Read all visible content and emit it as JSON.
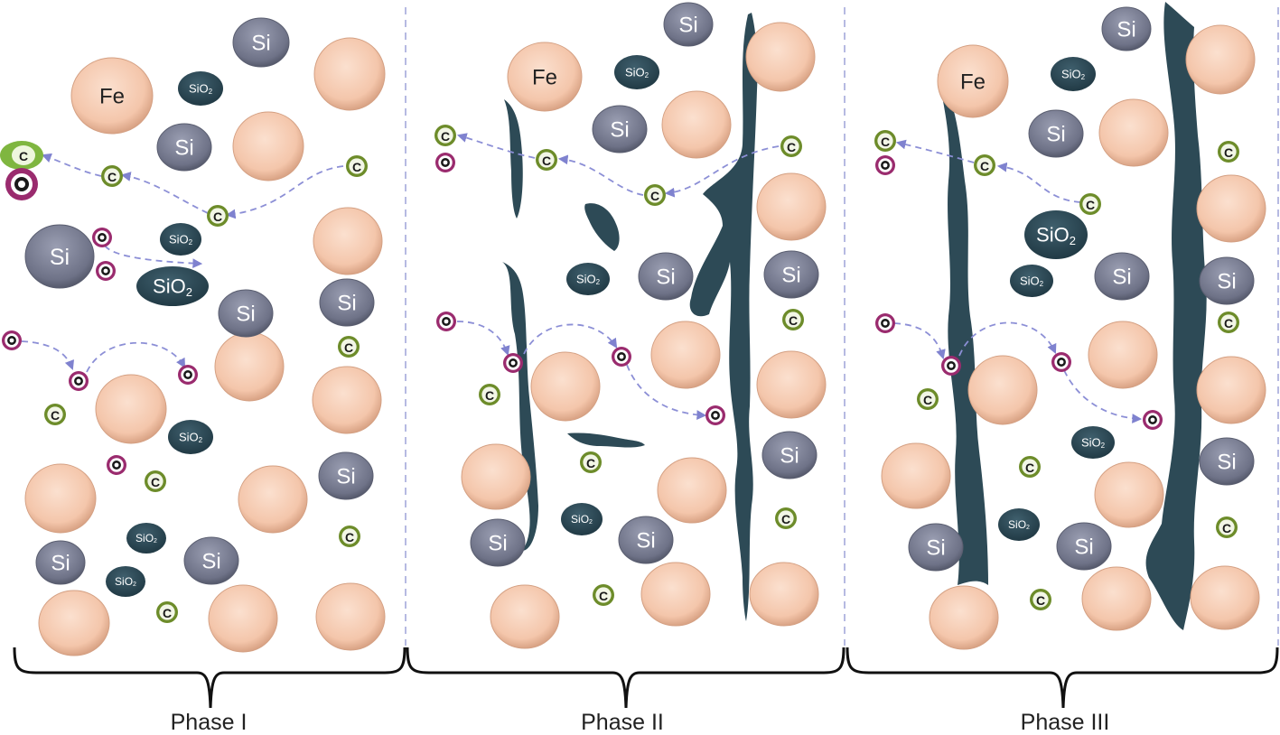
{
  "labels": {
    "iron": "Fe",
    "silicon": "Si",
    "silica_main": "SiO",
    "silica_sub": "2",
    "carbon": "C"
  },
  "phases": [
    {
      "label": "Phase I"
    },
    {
      "label": "Phase II"
    },
    {
      "label": "Phase III"
    }
  ],
  "colors": {
    "fe_particle": "#f6ccb3",
    "si_particle": "#7d8194",
    "sio2_particle": "#2d4a56",
    "carbon_ring": "#6d8c2a",
    "oxygen_ring": "#9a2b6e",
    "diffusion_arrow": "#8c8fd6",
    "channel": "#2d4a56"
  }
}
